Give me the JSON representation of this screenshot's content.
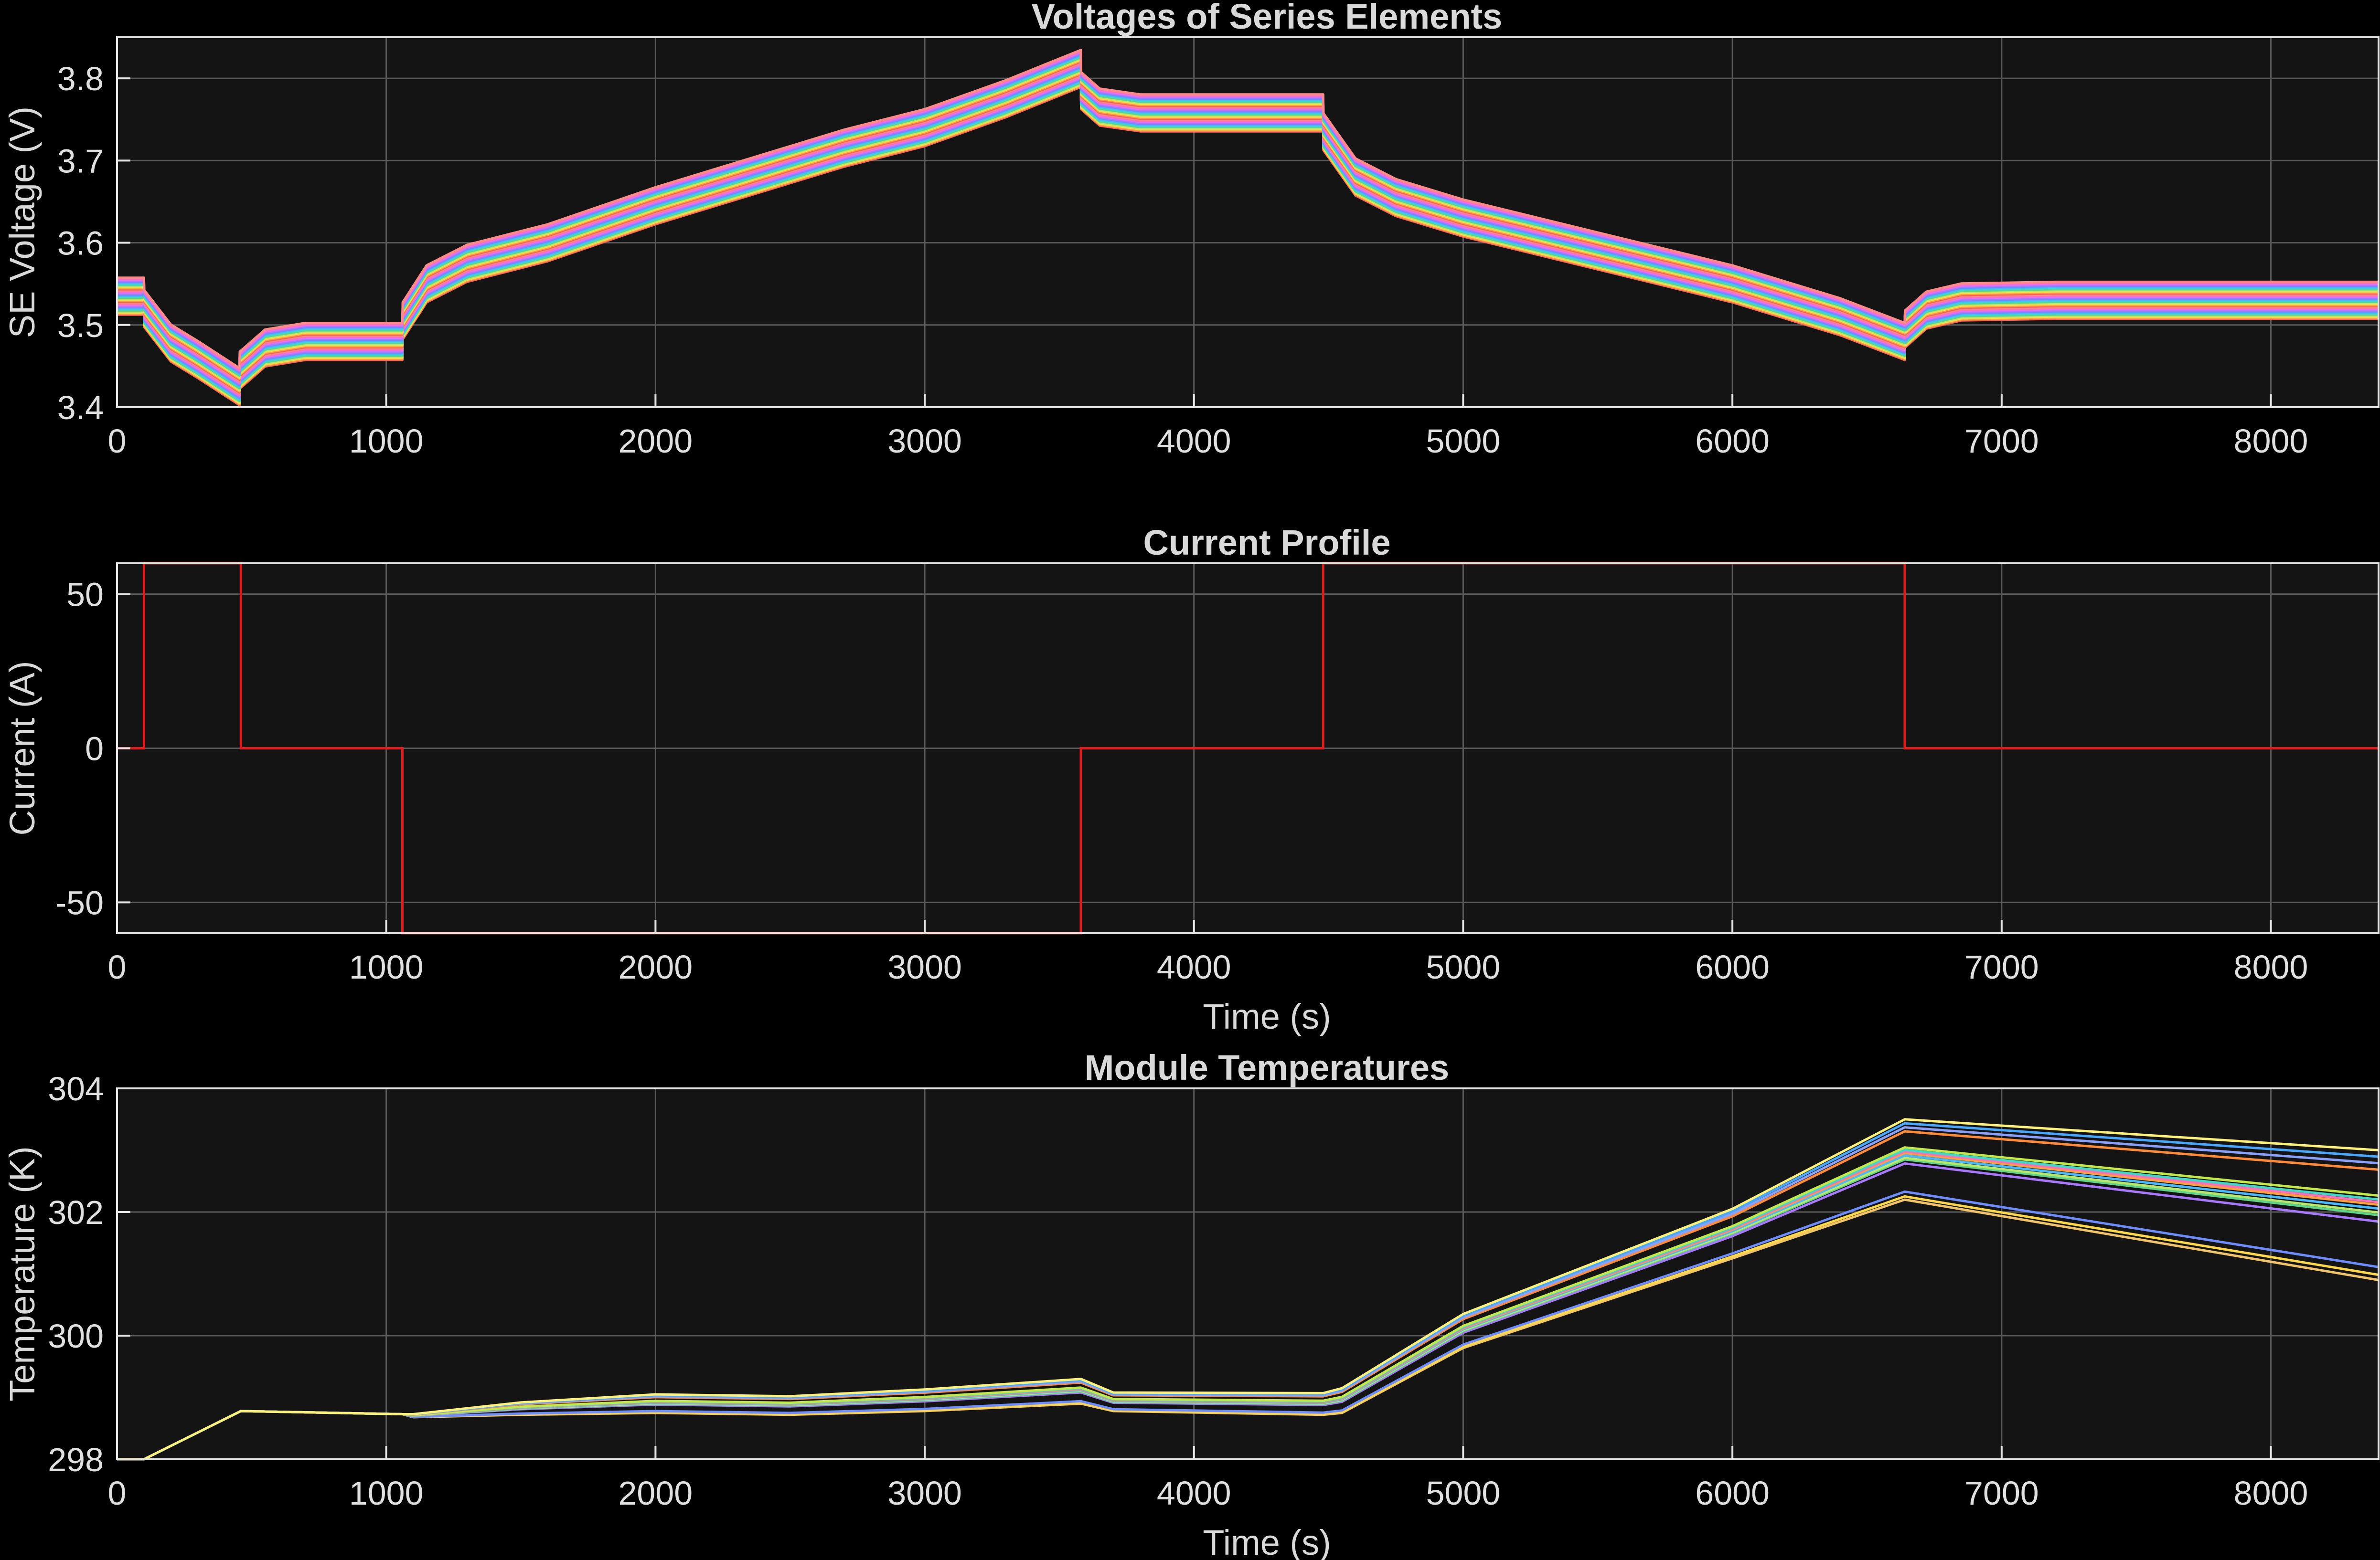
{
  "window": {
    "background": "#000000",
    "axes_background": "#141414",
    "grid_color": "#5a5a5a"
  },
  "chart_data": [
    {
      "type": "line",
      "title": "Voltages of Series Elements",
      "xlabel": "",
      "ylabel": "SE Voltage (V)",
      "xlim": [
        0,
        8400
      ],
      "ylim": [
        3.4,
        3.85
      ],
      "xticks": [
        0,
        1000,
        2000,
        3000,
        4000,
        5000,
        6000,
        7000,
        8000
      ],
      "yticks": [
        3.4,
        3.5,
        3.6,
        3.7,
        3.8
      ],
      "xtick_labels": [
        "0",
        "1000",
        "2000",
        "3000",
        "4000",
        "5000",
        "6000",
        "7000",
        "8000"
      ],
      "ytick_labels": [
        "3.4",
        "3.5",
        "3.6",
        "3.7",
        "3.8"
      ],
      "grid": true,
      "series_count": 36,
      "series_spread_v": 0.045,
      "x": [
        0,
        100,
        101,
        200,
        300,
        455,
        456,
        550,
        700,
        1060,
        1061,
        1150,
        1300,
        1600,
        2000,
        2300,
        2700,
        3000,
        3300,
        3580,
        3581,
        3650,
        3800,
        4480,
        4481,
        4600,
        4750,
        5000,
        5500,
        6000,
        6400,
        6640,
        6641,
        6720,
        6850,
        7200,
        8400
      ],
      "center": [
        3.535,
        3.535,
        3.52,
        3.478,
        3.458,
        3.425,
        3.445,
        3.472,
        3.48,
        3.48,
        3.505,
        3.55,
        3.575,
        3.6,
        3.645,
        3.675,
        3.715,
        3.74,
        3.775,
        3.812,
        3.785,
        3.765,
        3.758,
        3.758,
        3.735,
        3.68,
        3.655,
        3.63,
        3.59,
        3.55,
        3.51,
        3.48,
        3.495,
        3.518,
        3.528,
        3.53,
        3.53
      ],
      "colors": [
        "#ff5f5f",
        "#ffa040",
        "#ffd84a",
        "#b8e86a",
        "#5ed38a",
        "#3fd8c8",
        "#48b8ff",
        "#6f8cff",
        "#a878ff",
        "#e070ff",
        "#ff6fb8",
        "#ff8a8a"
      ]
    },
    {
      "type": "line",
      "title": "Current Profile",
      "xlabel": "Time (s)",
      "ylabel": "Current (A)",
      "xlim": [
        0,
        8400
      ],
      "ylim": [
        -60,
        60
      ],
      "xticks": [
        0,
        1000,
        2000,
        3000,
        4000,
        5000,
        6000,
        7000,
        8000
      ],
      "yticks": [
        -50,
        0,
        50
      ],
      "xtick_labels": [
        "0",
        "1000",
        "2000",
        "3000",
        "4000",
        "5000",
        "6000",
        "7000",
        "8000"
      ],
      "ytick_labels": [
        "-50",
        "0",
        "50"
      ],
      "grid": true,
      "line_color": "#e01c1c",
      "x": [
        0,
        100,
        100,
        460,
        460,
        1060,
        1060,
        3580,
        3580,
        4480,
        4480,
        6640,
        6640,
        8400
      ],
      "y": [
        0,
        0,
        60,
        60,
        0,
        0,
        -60,
        -60,
        0,
        0,
        60,
        60,
        0,
        0
      ]
    },
    {
      "type": "line",
      "title": "Module Temperatures",
      "xlabel": "Time (s)",
      "ylabel": "Temperature (K)",
      "xlim": [
        0,
        8400
      ],
      "ylim": [
        298,
        304
      ],
      "xticks": [
        0,
        1000,
        2000,
        3000,
        4000,
        5000,
        6000,
        7000,
        8000
      ],
      "yticks": [
        298,
        300,
        302,
        304
      ],
      "xtick_labels": [
        "0",
        "1000",
        "2000",
        "3000",
        "4000",
        "5000",
        "6000",
        "7000",
        "8000"
      ],
      "ytick_labels": [
        "298",
        "300",
        "302",
        "304"
      ],
      "grid": true,
      "x": [
        0,
        100,
        460,
        1060,
        1100,
        1500,
        2000,
        2500,
        3000,
        3580,
        3700,
        4480,
        4550,
        5000,
        6000,
        6640,
        8400
      ],
      "base": [
        298.0,
        298.0,
        298.78,
        298.73,
        298.68,
        298.72,
        298.75,
        298.72,
        298.78,
        298.9,
        298.78,
        298.72,
        298.75,
        299.8,
        301.25,
        302.2,
        300.9
      ],
      "dev": [
        0.0,
        0.0,
        0.0,
        0.0,
        0.05,
        0.2,
        0.3,
        0.3,
        0.35,
        0.4,
        0.3,
        0.35,
        0.4,
        0.55,
        0.8,
        1.3,
        2.1
      ],
      "levels": [
        0.0,
        0.04,
        0.1,
        0.45,
        0.5,
        0.52,
        0.55,
        0.58,
        0.6,
        0.62,
        0.65,
        0.85,
        0.9,
        0.95,
        1.0
      ],
      "colors": [
        "#f2c46a",
        "#ffd84a",
        "#6f8cff",
        "#a878ff",
        "#5ed38a",
        "#b8e86a",
        "#48b8ff",
        "#ffa040",
        "#ff6fb8",
        "#3fd8c8",
        "#c4e84a",
        "#ff8a3a",
        "#8aa0ff",
        "#48a8ff",
        "#fff07a"
      ]
    }
  ]
}
